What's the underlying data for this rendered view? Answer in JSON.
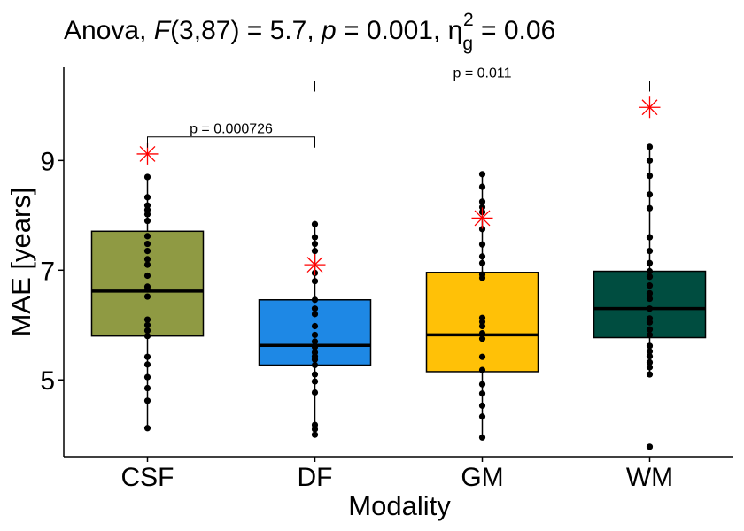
{
  "chart_data": {
    "type": "box",
    "title": {
      "prefix": "Anova, ",
      "f_symbol": "F",
      "f_df": "(3,87) = 5.7, ",
      "p_symbol": "p",
      "p_value": " = 0.001, ",
      "eta_symbol": "η",
      "eta_sub": "g",
      "eta_sup": "2",
      "eta_value": " = 0.06"
    },
    "xlabel": "Modality",
    "ylabel": "MAE [years]",
    "ylim": [
      3.6,
      10.7
    ],
    "yticks": [
      5,
      7,
      9
    ],
    "categories": [
      "CSF",
      "DF",
      "GM",
      "WM"
    ],
    "colors": {
      "CSF": "#8F9A43",
      "DF": "#1E88E5",
      "GM": "#FFC107",
      "WM": "#004D40",
      "mean_marker": "#FF0000"
    },
    "boxes": [
      {
        "name": "CSF",
        "q1": 5.8,
        "median": 6.62,
        "q3": 7.71,
        "whisker_low": 4.12,
        "whisker_high": 8.7,
        "mean": 9.12,
        "points": [
          4.12,
          4.62,
          4.85,
          5.05,
          5.28,
          5.42,
          5.8,
          5.9,
          6.0,
          6.1,
          6.52,
          6.65,
          6.7,
          6.9,
          7.1,
          7.2,
          7.35,
          7.48,
          7.62,
          7.9,
          8.02,
          8.1,
          8.18,
          8.33,
          8.7
        ]
      },
      {
        "name": "DF",
        "q1": 5.27,
        "median": 5.63,
        "q3": 6.46,
        "whisker_low": 4.0,
        "whisker_high": 7.84,
        "mean": 7.1,
        "points": [
          4.0,
          4.1,
          4.18,
          4.77,
          4.97,
          5.1,
          5.27,
          5.37,
          5.43,
          5.5,
          5.6,
          5.7,
          5.82,
          5.98,
          6.2,
          6.3,
          6.46,
          6.8,
          6.95,
          7.35,
          7.48,
          7.6,
          7.84
        ]
      },
      {
        "name": "GM",
        "q1": 5.15,
        "median": 5.82,
        "q3": 6.96,
        "whisker_low": 3.95,
        "whisker_high": 8.75,
        "mean": 7.95,
        "points": [
          3.95,
          4.33,
          4.53,
          4.75,
          4.92,
          5.18,
          5.42,
          5.75,
          5.85,
          5.98,
          6.06,
          6.13,
          6.86,
          6.92,
          7.13,
          7.25,
          7.47,
          7.75,
          8.06,
          8.15,
          8.25,
          8.52,
          8.75
        ]
      },
      {
        "name": "WM",
        "q1": 5.77,
        "median": 6.3,
        "q3": 6.98,
        "whisker_low": 5.1,
        "whisker_high": 9.25,
        "mean": 9.97,
        "points": [
          3.78,
          5.1,
          5.23,
          5.32,
          5.43,
          5.52,
          5.62,
          5.82,
          5.92,
          6.05,
          6.12,
          6.3,
          6.48,
          6.58,
          6.72,
          6.88,
          6.98,
          7.13,
          7.35,
          7.6,
          8.13,
          8.38,
          8.72,
          9.0,
          9.25
        ]
      }
    ],
    "comparisons": [
      {
        "from": "CSF",
        "to": "DF",
        "label": "p = 0.000726",
        "y": 9.43
      },
      {
        "from": "DF",
        "to": "WM",
        "label": "p = 0.011",
        "y": 10.45
      }
    ]
  }
}
